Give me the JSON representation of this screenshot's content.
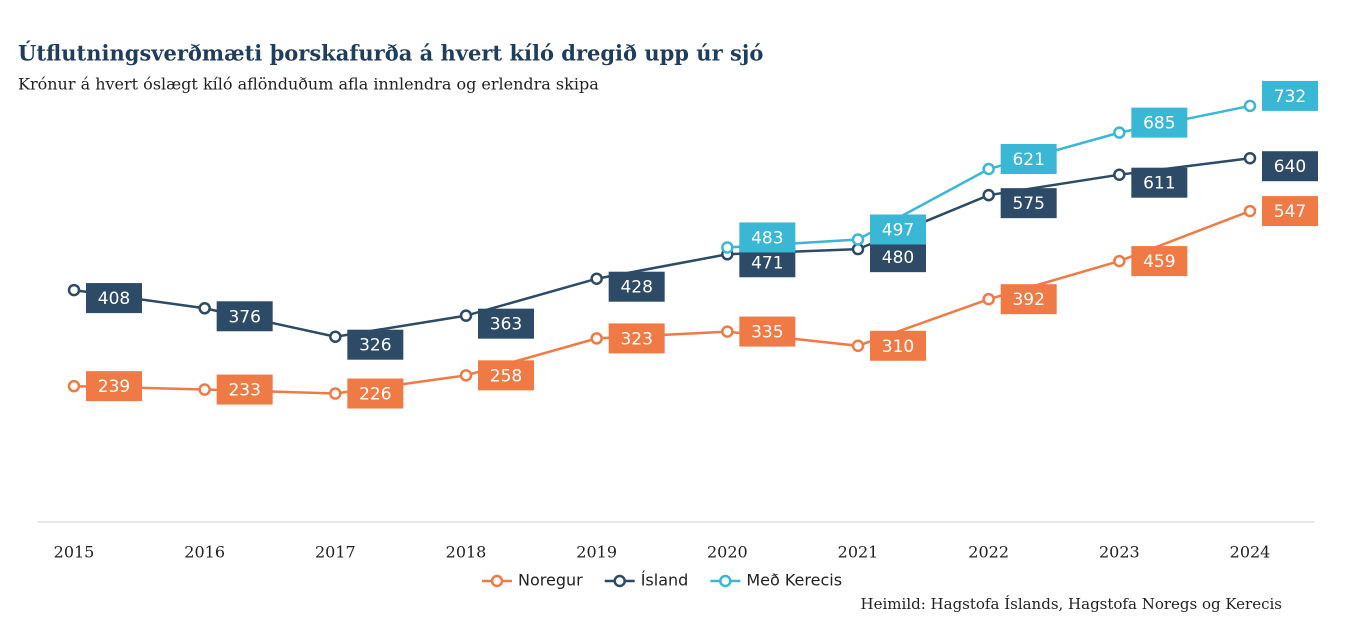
{
  "chart_data": {
    "type": "line",
    "title": "Útflutningsverðmæti þorskafurða á hvert kíló dregið upp úr sjó",
    "subtitle": "Krónur á hvert óslægt kíló aflönduðum afla innlendra og erlendra skipa",
    "source": "Heimild: Hagstofa Íslands, Hagstofa Noregs og Kerecis",
    "x": [
      2015,
      2016,
      2017,
      2018,
      2019,
      2020,
      2021,
      2022,
      2023,
      2024
    ],
    "xlim": [
      2015,
      2024
    ],
    "ylim": [
      0,
      760
    ],
    "series": [
      {
        "name": "Noregur",
        "color": "#f07a45",
        "values": [
          239,
          233,
          226,
          258,
          323,
          335,
          310,
          392,
          459,
          547
        ]
      },
      {
        "name": "Ísland",
        "color": "#2d4a66",
        "values": [
          408,
          376,
          326,
          363,
          428,
          471,
          480,
          575,
          611,
          640
        ]
      },
      {
        "name": "Með Kerecis",
        "color": "#3ab7d4",
        "values": [
          null,
          null,
          null,
          null,
          null,
          483,
          497,
          621,
          685,
          732
        ]
      }
    ]
  }
}
